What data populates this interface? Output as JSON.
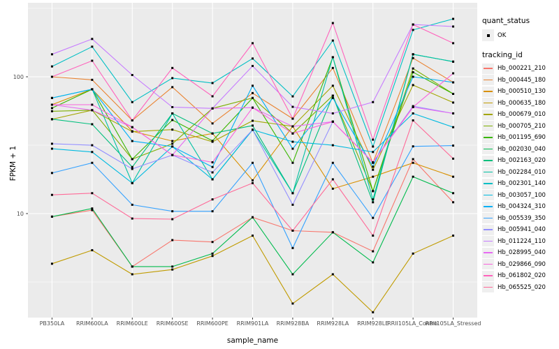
{
  "axes": {
    "x_title": "sample_name",
    "y_title": "FPKM + 1"
  },
  "legend": {
    "quant_status_title": "quant_status",
    "ok_label": "OK",
    "tracking_title": "tracking_id"
  },
  "colors": {
    "panel_bg": "#ebebeb",
    "grid": "#ffffff",
    "tick": "#333333",
    "tick_text": "#4d4d4d",
    "point": "#000000",
    "legend_key_bg": "#efefef"
  },
  "chart_data": {
    "type": "line",
    "title": "",
    "xlabel": "sample_name",
    "ylabel": "FPKM + 1",
    "y_scale": "log10",
    "ylim": [
      1.7,
      350
    ],
    "grid": "on",
    "legend_position": "right",
    "y_ticks": [
      {
        "label": "100",
        "value": 100
      },
      {
        "label": "10",
        "value": 10
      }
    ],
    "y_minor_ticks": [
      3.162,
      31.62,
      316.2
    ],
    "categories": [
      "PB350LA",
      "RRIM600LA",
      "RRIM600LE",
      "RRIM600SE",
      "RRIM600PE",
      "RRIM901LA",
      "RRIM928BA",
      "RRIM928LA",
      "RRIM928LE",
      "RRII105LA_Control",
      "RRII105LA_Stressed"
    ],
    "quant_status": "OK",
    "series": [
      {
        "name": "Hb_000221_210",
        "color": "#F8766D",
        "values": [
          9.5,
          10.6,
          4.1,
          6.4,
          6.2,
          9.4,
          7.5,
          7.3,
          5.3,
          25.0,
          12.1
        ]
      },
      {
        "name": "Hb_000445_180",
        "color": "#EA8331",
        "values": [
          100,
          95,
          48,
          84,
          45.6,
          76,
          49.4,
          116,
          23.5,
          137,
          91
        ]
      },
      {
        "name": "Hb_000510_130",
        "color": "#D89000",
        "values": [
          62.5,
          81,
          40,
          33.9,
          38.5,
          17.5,
          43.4,
          15.2,
          18.6,
          23.5,
          18.6
        ]
      },
      {
        "name": "Hb_000635_180",
        "color": "#C09B00",
        "values": [
          4.3,
          5.4,
          3.6,
          3.9,
          4.9,
          6.9,
          2.2,
          3.6,
          1.9,
          5.1,
          6.9
        ]
      },
      {
        "name": "Hb_000679_010",
        "color": "#A3A500",
        "values": [
          48.9,
          57,
          39.7,
          41.1,
          33.5,
          47.7,
          43.4,
          86,
          20.9,
          87,
          64.8
        ]
      },
      {
        "name": "Hb_000705_210",
        "color": "#7CAE00",
        "values": [
          56,
          57,
          25,
          32.4,
          58.7,
          70,
          38.5,
          72.8,
          14.6,
          115,
          75
        ]
      },
      {
        "name": "Hb_001195_690",
        "color": "#39B600",
        "values": [
          59,
          81,
          25,
          48.3,
          34,
          70,
          23.5,
          139,
          14.6,
          108,
          75
        ]
      },
      {
        "name": "Hb_002030_040",
        "color": "#00BB4E",
        "values": [
          9.5,
          10.9,
          4.1,
          4.1,
          5.1,
          9.4,
          3.6,
          7.3,
          4.4,
          18.6,
          14.1
        ]
      },
      {
        "name": "Hb_002163_020",
        "color": "#00BF7D",
        "values": [
          49,
          45,
          21.9,
          54,
          38.5,
          44,
          14.1,
          72.8,
          12.1,
          146,
          129
        ]
      },
      {
        "name": "Hb_002284_010",
        "color": "#00C1A3",
        "values": [
          70,
          81,
          16.7,
          54,
          17.8,
          41,
          14.1,
          139,
          12.7,
          146,
          129
        ]
      },
      {
        "name": "Hb_002301_140",
        "color": "#00BFC4",
        "values": [
          119,
          166,
          65.3,
          97.8,
          90,
          136,
          71.9,
          184,
          30.9,
          220,
          265
        ]
      },
      {
        "name": "Hb_003057_100",
        "color": "#00BAE0",
        "values": [
          29.8,
          28.2,
          16.7,
          30.9,
          17.8,
          41,
          33.5,
          31.6,
          28.2,
          54,
          42.8
        ]
      },
      {
        "name": "Hb_004324_310",
        "color": "#00B0F6",
        "values": [
          70,
          81,
          33.9,
          30.9,
          21.9,
          86,
          29.8,
          70,
          22,
          100,
          91
        ]
      },
      {
        "name": "Hb_005539_350",
        "color": "#35A2FF",
        "values": [
          19.8,
          23.5,
          11.6,
          10.4,
          10.4,
          23.5,
          5.6,
          23.5,
          9.3,
          31,
          31.4
        ]
      },
      {
        "name": "Hb_005941_040",
        "color": "#9590FF",
        "values": [
          32.4,
          31.6,
          21.2,
          26.8,
          20,
          41,
          11.6,
          47,
          23.7,
          61,
          54
        ]
      },
      {
        "name": "Hb_011224_110",
        "color": "#C77CFF",
        "values": [
          146,
          189,
          103,
          60,
          58.7,
          120,
          60.3,
          54,
          65.3,
          241,
          233
        ]
      },
      {
        "name": "Hb_028995_040",
        "color": "#E76BF3",
        "values": [
          62.5,
          57,
          42.8,
          26.8,
          58.7,
          59.5,
          43.4,
          47,
          23.7,
          60,
          54
        ]
      },
      {
        "name": "Hb_029866_090",
        "color": "#FA62DB",
        "values": [
          62.5,
          62.5,
          42.8,
          26.8,
          23.7,
          59.5,
          38.5,
          47,
          23.7,
          60,
          106
        ]
      },
      {
        "name": "Hb_061802_020",
        "color": "#FF62BC",
        "values": [
          100,
          131,
          48,
          116,
          72,
          176,
          49.4,
          247,
          34.7,
          241,
          176
        ]
      },
      {
        "name": "Hb_065525_020",
        "color": "#FF6A98",
        "values": [
          13.7,
          14.1,
          9.2,
          9.1,
          12.7,
          16.7,
          7.5,
          17.8,
          6.9,
          48,
          25.2
        ]
      }
    ]
  }
}
